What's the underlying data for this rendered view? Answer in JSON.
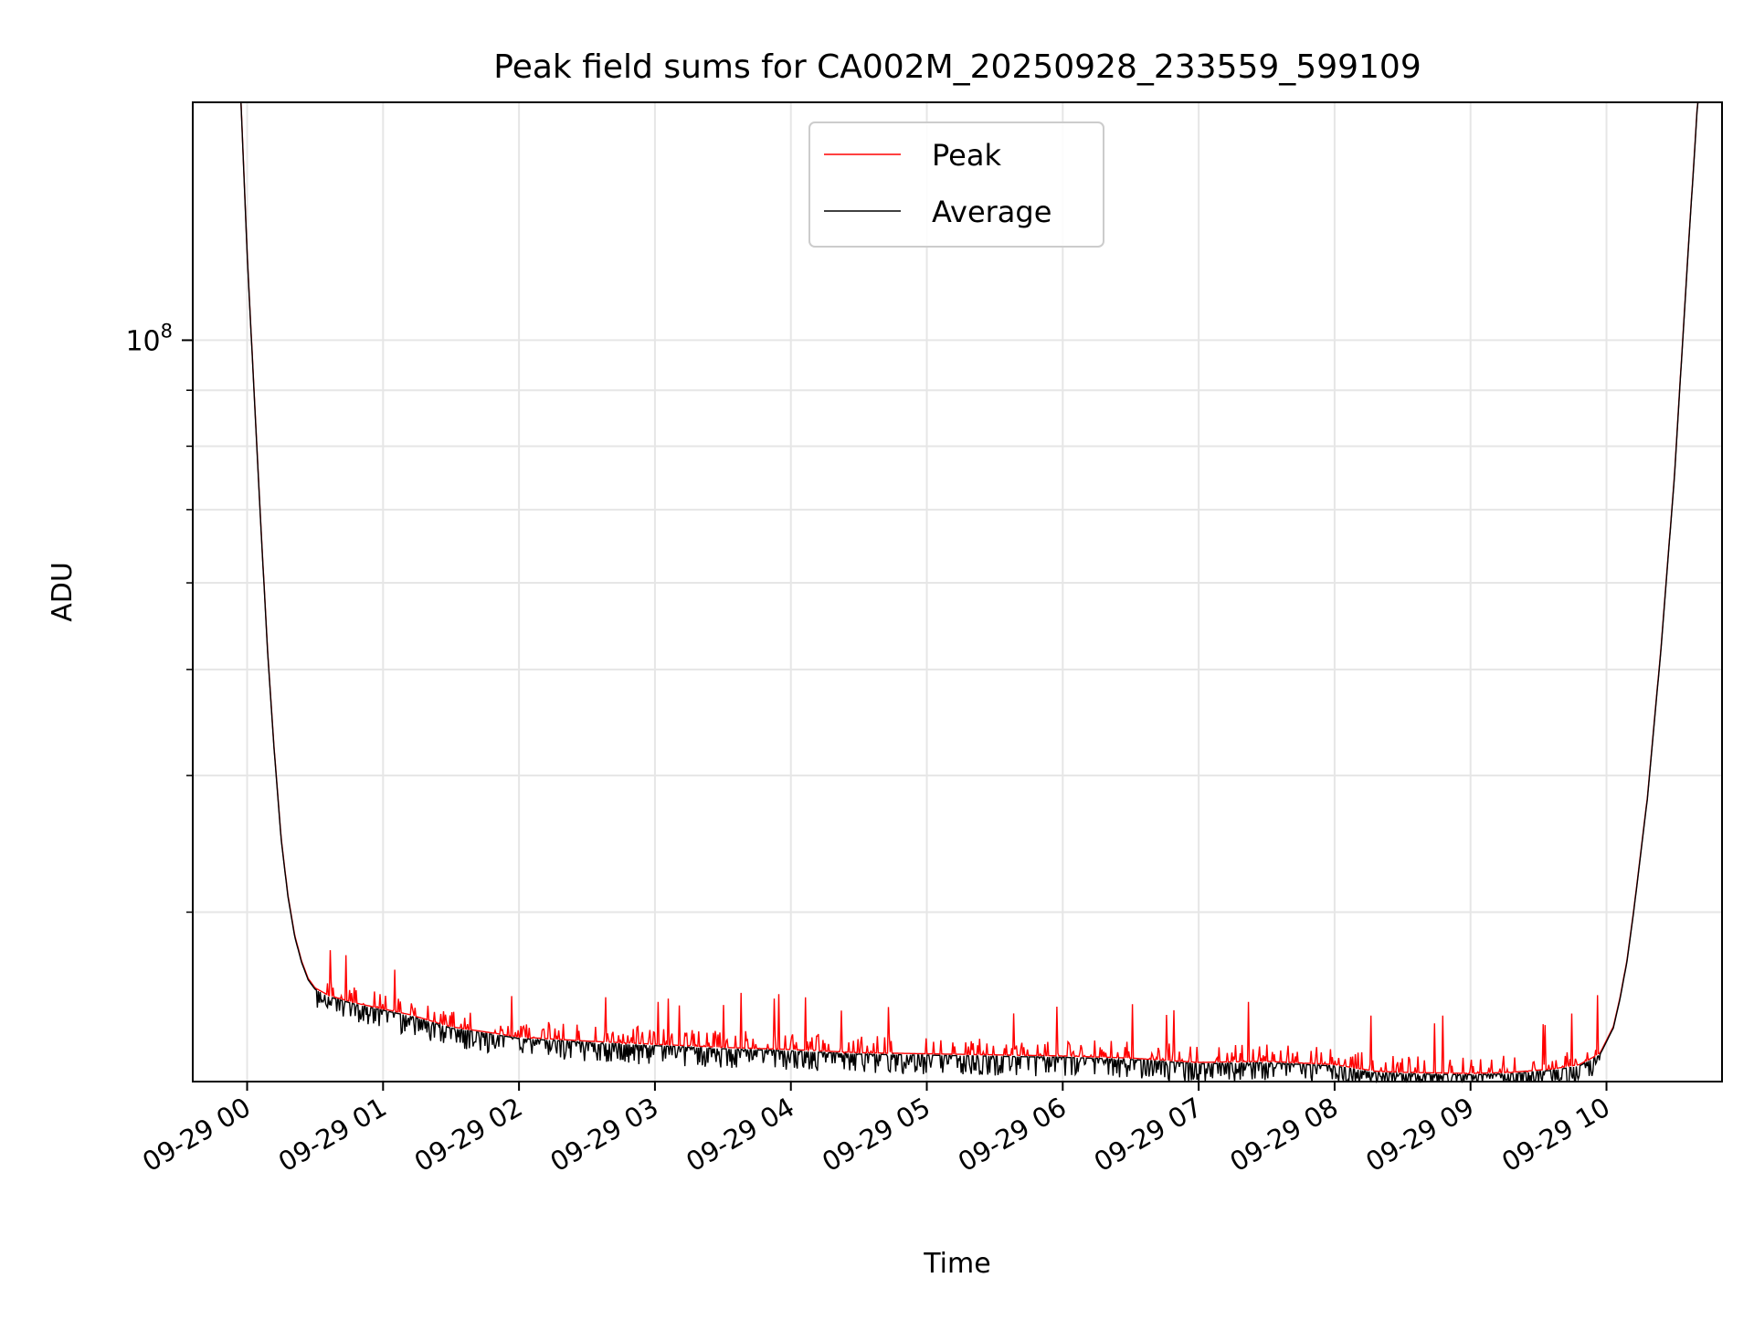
{
  "chart_data": {
    "type": "line",
    "title": "Peak field sums for CA002M_20250928_233559_599109",
    "xlabel": "Time",
    "ylabel": "ADU",
    "yscale": "log",
    "grid": true,
    "legend_position": "top-center",
    "xlim_hours": [
      -0.4,
      10.85
    ],
    "ylim": [
      21000000,
      165000000
    ],
    "x_unit": "hours after 2025-09-29 00:00",
    "x_ticks": [
      {
        "value": 0,
        "label": "09-29 00"
      },
      {
        "value": 1,
        "label": "09-29 01"
      },
      {
        "value": 2,
        "label": "09-29 02"
      },
      {
        "value": 3,
        "label": "09-29 03"
      },
      {
        "value": 4,
        "label": "09-29 04"
      },
      {
        "value": 5,
        "label": "09-29 05"
      },
      {
        "value": 6,
        "label": "09-29 06"
      },
      {
        "value": 7,
        "label": "09-29 07"
      },
      {
        "value": 8,
        "label": "09-29 08"
      },
      {
        "value": 9,
        "label": "09-29 09"
      },
      {
        "value": 10,
        "label": "09-29 10"
      }
    ],
    "y_major_ticks": [
      {
        "value": 100000000,
        "base": "10",
        "exponent": "8"
      }
    ],
    "y_minor_ticks": [
      30000000,
      40000000,
      50000000,
      60000000,
      70000000,
      80000000,
      90000000,
      200000000
    ],
    "baseline": {
      "x": [
        -0.1,
        -0.05,
        0.0,
        0.05,
        0.1,
        0.15,
        0.2,
        0.25,
        0.3,
        0.35,
        0.4,
        0.45,
        0.5,
        0.6,
        0.8,
        1.0,
        1.2,
        1.5,
        2.0,
        2.5,
        3.0,
        3.5,
        4.0,
        4.5,
        5.0,
        5.5,
        6.0,
        6.5,
        7.0,
        7.5,
        8.0,
        8.3,
        8.5,
        9.0,
        9.3,
        9.6,
        9.8,
        9.95,
        10.05,
        10.1,
        10.15,
        10.2,
        10.3,
        10.4,
        10.5,
        10.55,
        10.6,
        10.65,
        10.7
      ],
      "y": [
        210000000,
        170000000,
        120000000,
        90000000,
        68000000,
        52000000,
        42000000,
        35000000,
        31000000,
        28500000,
        27000000,
        26000000,
        25500000,
        25100000,
        24700000,
        24400000,
        24100000,
        23500000,
        23000000,
        22800000,
        22650000,
        22500000,
        22400000,
        22250000,
        22200000,
        22150000,
        22100000,
        22000000,
        21800000,
        21850000,
        21700000,
        21400000,
        21350000,
        21300000,
        21350000,
        21500000,
        21700000,
        22200000,
        23500000,
        25000000,
        27000000,
        30000000,
        38000000,
        52000000,
        75000000,
        95000000,
        120000000,
        150000000,
        190000000
      ]
    },
    "series": [
      {
        "name": "Peak",
        "color": "#ff0000"
      },
      {
        "name": "Average",
        "color": "#000000"
      }
    ]
  }
}
